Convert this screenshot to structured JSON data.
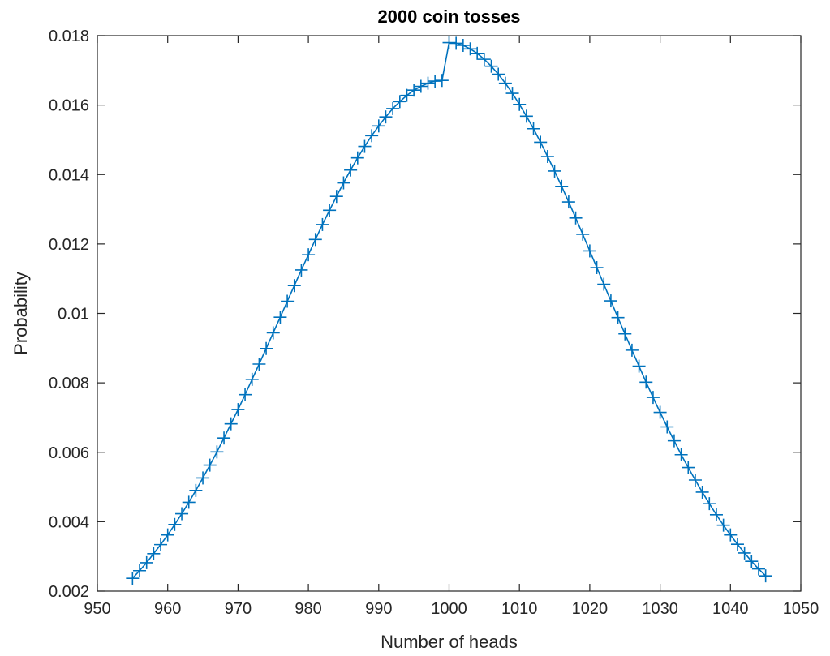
{
  "chart_data": {
    "type": "line",
    "title": "2000 coin tosses",
    "xlabel": "Number of heads",
    "ylabel": "Probability",
    "xlim": [
      950,
      1050
    ],
    "ylim": [
      0.002,
      0.018
    ],
    "xticks": [
      950,
      960,
      970,
      980,
      990,
      1000,
      1010,
      1020,
      1030,
      1040,
      1050
    ],
    "xtick_labels": [
      "950",
      "960",
      "970",
      "980",
      "990",
      "1000",
      "1010",
      "1020",
      "1030",
      "1040",
      "1050"
    ],
    "yticks": [
      0.002,
      0.004,
      0.006,
      0.008,
      0.01,
      0.012,
      0.014,
      0.016,
      0.018
    ],
    "ytick_labels": [
      "0.002",
      "0.004",
      "0.006",
      "0.008",
      "0.01",
      "0.012",
      "0.014",
      "0.016",
      "0.018"
    ],
    "grid": false,
    "marker": "+",
    "color": "#0072BD",
    "series": [
      {
        "x": [
          955,
          956,
          957,
          958,
          959,
          960,
          961,
          962,
          963,
          964,
          965,
          966,
          967,
          968,
          969,
          970,
          971,
          972,
          973,
          974,
          975,
          976,
          977,
          978,
          979,
          980,
          981,
          982,
          983,
          984,
          985,
          986,
          987,
          988,
          989,
          990,
          991,
          992,
          993,
          994,
          995,
          996,
          997,
          998,
          999,
          1000,
          1001,
          1002,
          1003,
          1004,
          1005,
          1006,
          1007,
          1008,
          1009,
          1010,
          1011,
          1012,
          1013,
          1014,
          1015,
          1016,
          1017,
          1018,
          1019,
          1020,
          1021,
          1022,
          1023,
          1024,
          1025,
          1026,
          1027,
          1028,
          1029,
          1030,
          1031,
          1032,
          1033,
          1034,
          1035,
          1036,
          1037,
          1038,
          1039,
          1040,
          1041,
          1042,
          1043,
          1044,
          1045
        ],
        "y": [
          0.00237,
          0.00259,
          0.00282,
          0.00308,
          0.00334,
          0.00362,
          0.00392,
          0.00423,
          0.00456,
          0.0049,
          0.00526,
          0.00563,
          0.00601,
          0.00641,
          0.00682,
          0.00723,
          0.00766,
          0.0081,
          0.00854,
          0.00899,
          0.00944,
          0.00989,
          0.01035,
          0.0108,
          0.01125,
          0.01169,
          0.01213,
          0.01256,
          0.01297,
          0.01337,
          0.01376,
          0.01413,
          0.01448,
          0.01481,
          0.01512,
          0.0154,
          0.01566,
          0.0159,
          0.0161,
          0.01628,
          0.01643,
          0.01654,
          0.01663,
          0.01669,
          0.01671,
          0.0178,
          0.01778,
          0.01772,
          0.01762,
          0.01749,
          0.01732,
          0.01712,
          0.01689,
          0.01663,
          0.01634,
          0.01602,
          0.01568,
          0.01532,
          0.01493,
          0.01452,
          0.0141,
          0.01366,
          0.01321,
          0.01275,
          0.01228,
          0.0118,
          0.01132,
          0.01084,
          0.01036,
          0.00988,
          0.00941,
          0.00894,
          0.00848,
          0.00802,
          0.00758,
          0.00715,
          0.00673,
          0.00633,
          0.00593,
          0.00556,
          0.0052,
          0.00485,
          0.00452,
          0.0042,
          0.0039,
          0.00362,
          0.00335,
          0.0031,
          0.00286,
          0.00264,
          0.00244
        ]
      }
    ]
  }
}
